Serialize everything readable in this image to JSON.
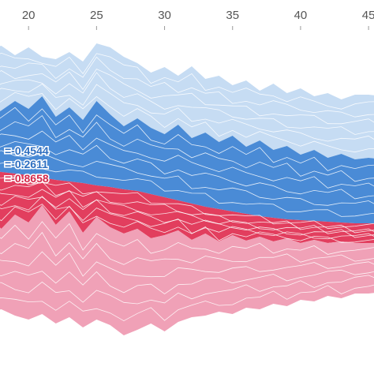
{
  "chart_data": {
    "type": "area",
    "x_ticks": [
      20,
      25,
      30,
      35,
      40,
      45
    ],
    "xlim": [
      17.9,
      45.4
    ],
    "x": [
      17,
      18,
      19,
      20,
      21,
      22,
      23,
      24,
      25,
      26,
      27,
      28,
      29,
      30,
      31,
      32,
      33,
      34,
      35,
      36,
      37,
      38,
      39,
      40,
      41,
      42,
      43,
      44,
      45,
      46
    ],
    "bands": [
      {
        "name": "",
        "color": "#c6dcf3",
        "top": [
          62,
          58,
          70,
          60,
          72,
          75,
          66,
          78,
          55,
          60,
          72,
          80,
          92,
          85,
          96,
          84,
          100,
          96,
          108,
          102,
          115,
          106,
          118,
          112,
          122,
          118,
          126,
          120,
          120,
          122
        ],
        "bottom": [
          150,
          140,
          128,
          138,
          122,
          148,
          136,
          152,
          128,
          145,
          160,
          150,
          162,
          170,
          158,
          175,
          168,
          180,
          172,
          186,
          178,
          190,
          185,
          196,
          190,
          200,
          195,
          202,
          200,
          202
        ]
      },
      {
        "name": "",
        "color": "#4a8bd6",
        "top": [
          150,
          140,
          128,
          138,
          122,
          148,
          136,
          152,
          128,
          145,
          160,
          150,
          162,
          170,
          158,
          175,
          168,
          180,
          172,
          186,
          178,
          190,
          185,
          196,
          190,
          200,
          195,
          202,
          200,
          202
        ],
        "bottom": [
          216,
          218,
          220,
          222,
          225,
          228,
          230,
          232,
          235,
          237,
          240,
          242,
          246,
          250,
          254,
          258,
          262,
          265,
          268,
          271,
          274,
          276,
          278,
          279,
          280,
          281,
          282,
          283,
          283,
          283
        ]
      },
      {
        "name": "",
        "color": "#e23e5e",
        "top": [
          216,
          218,
          220,
          222,
          225,
          228,
          230,
          232,
          235,
          237,
          240,
          242,
          246,
          250,
          254,
          258,
          262,
          265,
          268,
          271,
          274,
          276,
          278,
          279,
          280,
          281,
          282,
          283,
          283,
          283
        ],
        "bottom": [
          275,
          290,
          272,
          282,
          260,
          285,
          268,
          295,
          275,
          288,
          296,
          290,
          302,
          298,
          292,
          304,
          296,
          306,
          298,
          305,
          300,
          306,
          302,
          308,
          304,
          308,
          306,
          308,
          308,
          308
        ]
      },
      {
        "name": "",
        "color": "#f0a1b7",
        "top": [
          275,
          290,
          272,
          282,
          260,
          285,
          268,
          295,
          275,
          288,
          296,
          290,
          302,
          298,
          292,
          304,
          296,
          306,
          298,
          305,
          300,
          306,
          302,
          308,
          304,
          308,
          306,
          308,
          308,
          308
        ],
        "bottom": [
          395,
          392,
          400,
          405,
          398,
          410,
          402,
          415,
          405,
          412,
          425,
          418,
          410,
          420,
          408,
          402,
          400,
          395,
          398,
          390,
          392,
          385,
          388,
          380,
          382,
          375,
          378,
          372,
          372,
          370
        ]
      }
    ],
    "annotations": [
      {
        "text": "=-0.4544",
        "color": "#2f6fc0"
      },
      {
        "text": "=-0.2611",
        "color": "#2f6fc0"
      },
      {
        "text": "=-0.8658",
        "color": "#d42a4c"
      }
    ]
  }
}
